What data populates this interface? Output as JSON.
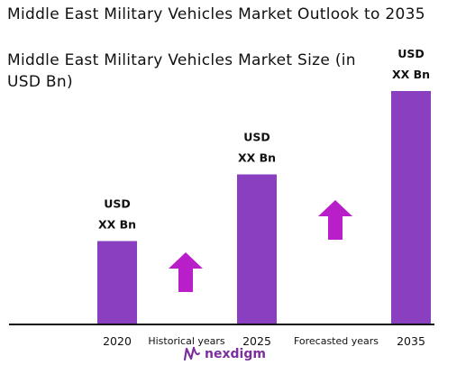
{
  "chart_data": {
    "type": "bar",
    "title": "Middle East Military Vehicles Market Outlook to 2035",
    "subtitle": "Middle East Military Vehicles Market Size (in USD Bn)",
    "categories": [
      "2020",
      "2025",
      "2035"
    ],
    "values": [
      1,
      1.8,
      2.8
    ],
    "value_labels": [
      "USD XX Bn",
      "USD XX Bn",
      "USD XX Bn"
    ],
    "value_label_lines": [
      [
        "USD",
        "XX Bn"
      ],
      [
        "USD",
        "XX Bn"
      ],
      [
        "USD",
        "XX Bn"
      ]
    ],
    "ylim": [
      0,
      3.0
    ],
    "grid": false,
    "bar_color": "#8a3fc1",
    "arrow_color": "#b91fc8",
    "period_labels": [
      "Historical years",
      "Forecasted years"
    ],
    "trend_arrows": [
      "up",
      "up"
    ]
  },
  "brand": {
    "name": "nexdigm",
    "icon": "nexdigm-logo-icon",
    "color": "#7b2f9e"
  }
}
